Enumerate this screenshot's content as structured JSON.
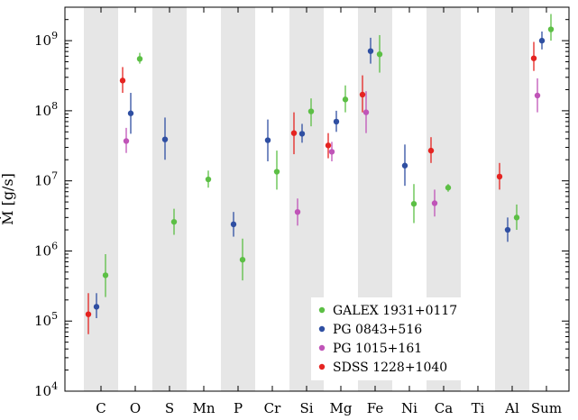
{
  "chart_data": {
    "type": "scatter",
    "ylabel": "Ṁ [g/s]",
    "yscale": "log",
    "ylim": [
      10000,
      3000000000
    ],
    "categories": [
      "C",
      "O",
      "S",
      "Mn",
      "P",
      "Cr",
      "Si",
      "Mg",
      "Fe",
      "Ni",
      "Ca",
      "Ti",
      "Al",
      "Sum"
    ],
    "shaded_categories": [
      "C",
      "S",
      "P",
      "Si",
      "Fe",
      "Ca",
      "Al"
    ],
    "y_tick_labels": [
      {
        "value": 10000,
        "base": "10",
        "exp": "4"
      },
      {
        "value": 100000,
        "base": "10",
        "exp": "5"
      },
      {
        "value": 1000000,
        "base": "10",
        "exp": "6"
      },
      {
        "value": 10000000,
        "base": "10",
        "exp": "7"
      },
      {
        "value": 100000000,
        "base": "10",
        "exp": "8"
      },
      {
        "value": 1000000000,
        "base": "10",
        "exp": "9"
      }
    ],
    "legend": {
      "placement": "lower-right"
    },
    "series": [
      {
        "name": "GALEX 1931+0117",
        "color": "#5cbf45",
        "points": [
          {
            "category": "C",
            "y": 450000,
            "low": 220000,
            "high": 900000
          },
          {
            "category": "O",
            "y": 550000000,
            "low": 470000000,
            "high": 670000000
          },
          {
            "category": "S",
            "y": 2600000,
            "low": 1700000,
            "high": 4000000
          },
          {
            "category": "Mn",
            "y": 10500000,
            "low": 8000000,
            "high": 14000000
          },
          {
            "category": "P",
            "y": 750000,
            "low": 380000,
            "high": 1500000
          },
          {
            "category": "Cr",
            "y": 13500000,
            "low": 7500000,
            "high": 27000000
          },
          {
            "category": "Si",
            "y": 98000000,
            "low": 60000000,
            "high": 150000000
          },
          {
            "category": "Mg",
            "y": 145000000,
            "low": 95000000,
            "high": 230000000
          },
          {
            "category": "Fe",
            "y": 640000000,
            "low": 350000000,
            "high": 1200000000
          },
          {
            "category": "Ni",
            "y": 4700000,
            "low": 2500000,
            "high": 9000000
          },
          {
            "category": "Ca",
            "y": 8000000,
            "low": 7000000,
            "high": 9000000
          },
          {
            "category": "Al",
            "y": 3000000,
            "low": 2000000,
            "high": 4600000
          },
          {
            "category": "Sum",
            "y": 1450000000,
            "low": 1000000000,
            "high": 2400000000
          }
        ]
      },
      {
        "name": "PG 0843+516",
        "color": "#2f4fa2",
        "points": [
          {
            "category": "C",
            "y": 160000,
            "low": 110000,
            "high": 250000
          },
          {
            "category": "O",
            "y": 92000000,
            "low": 47000000,
            "high": 180000000
          },
          {
            "category": "S",
            "y": 39000000,
            "low": 20000000,
            "high": 80000000
          },
          {
            "category": "P",
            "y": 2400000,
            "low": 1600000,
            "high": 3600000
          },
          {
            "category": "Cr",
            "y": 38000000,
            "low": 19000000,
            "high": 75000000
          },
          {
            "category": "Si",
            "y": 47000000,
            "low": 35000000,
            "high": 65000000
          },
          {
            "category": "Mg",
            "y": 70000000,
            "low": 50000000,
            "high": 100000000
          },
          {
            "category": "Fe",
            "y": 710000000,
            "low": 470000000,
            "high": 1100000000
          },
          {
            "category": "Ni",
            "y": 16500000,
            "low": 8500000,
            "high": 33000000
          },
          {
            "category": "Al",
            "y": 2000000,
            "low": 1350000,
            "high": 3000000
          },
          {
            "category": "Sum",
            "y": 1000000000,
            "low": 750000000,
            "high": 1350000000
          }
        ]
      },
      {
        "name": "PG 1015+161",
        "color": "#c054b8",
        "points": [
          {
            "category": "O",
            "y": 37000000,
            "low": 25000000,
            "high": 57000000
          },
          {
            "category": "Si",
            "y": 3600000,
            "low": 2300000,
            "high": 5600000
          },
          {
            "category": "Mg",
            "y": 26000000,
            "low": 19000000,
            "high": 36000000
          },
          {
            "category": "Fe",
            "y": 95000000,
            "low": 48000000,
            "high": 190000000
          },
          {
            "category": "Ca",
            "y": 4800000,
            "low": 3100000,
            "high": 7500000
          },
          {
            "category": "Sum",
            "y": 165000000,
            "low": 95000000,
            "high": 290000000
          }
        ]
      },
      {
        "name": "SDSS 1228+1040",
        "color": "#e52421",
        "points": [
          {
            "category": "C",
            "y": 125000,
            "low": 65000,
            "high": 250000
          },
          {
            "category": "O",
            "y": 270000000,
            "low": 180000000,
            "high": 420000000
          },
          {
            "category": "Si",
            "y": 48000000,
            "low": 24000000,
            "high": 95000000
          },
          {
            "category": "Mg",
            "y": 32000000,
            "low": 21000000,
            "high": 48000000
          },
          {
            "category": "Fe",
            "y": 170000000,
            "low": 95000000,
            "high": 320000000
          },
          {
            "category": "Ca",
            "y": 27000000,
            "low": 18000000,
            "high": 42000000
          },
          {
            "category": "Al",
            "y": 11500000,
            "low": 7500000,
            "high": 18000000
          },
          {
            "category": "Sum",
            "y": 560000000,
            "low": 370000000,
            "high": 960000000
          }
        ]
      }
    ]
  }
}
